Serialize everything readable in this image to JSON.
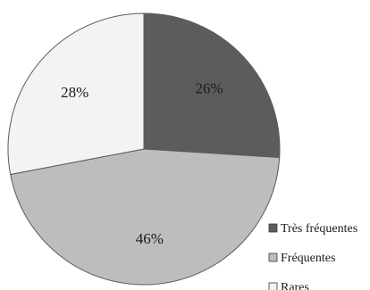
{
  "chart_data": {
    "type": "pie",
    "labels": [
      "Très fréquentes",
      "Fréquentes",
      "Rares"
    ],
    "values": [
      26,
      46,
      28
    ],
    "value_labels": [
      "26%",
      "46%",
      "28%"
    ],
    "colors": [
      "#5c5c5c",
      "#bdbdbd",
      "#f3f3f3"
    ],
    "start_angle_deg": 0,
    "direction": "clockwise",
    "legend_position": "bottom-right"
  }
}
